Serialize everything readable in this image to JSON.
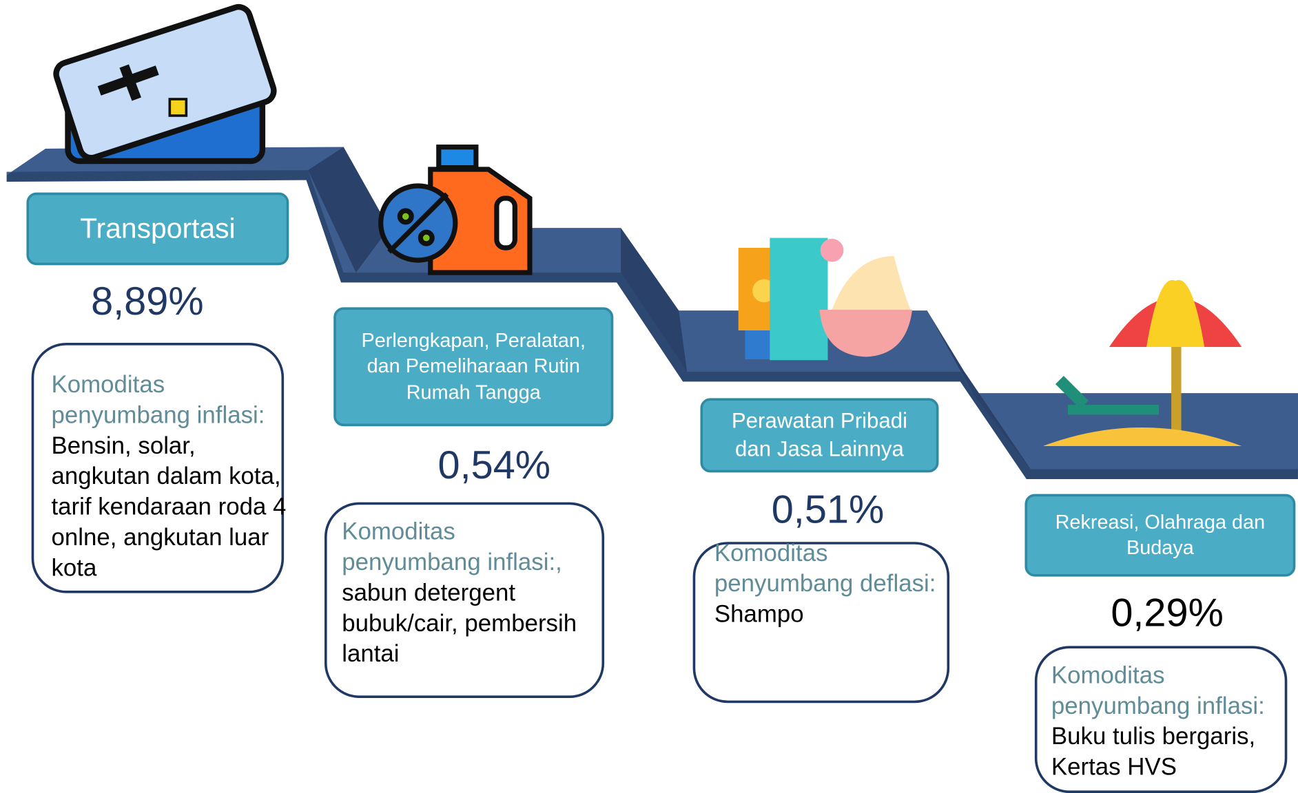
{
  "items": [
    {
      "category": "Transportasi",
      "value": "8,89%",
      "commodity_label": "Komoditas penyumbang inflasi:",
      "commodities": "Bensin, solar, angkutan dalam kota, tarif kendaraan roda 4 onlne, angkutan luar kota"
    },
    {
      "category": "Perlengkapan, Peralatan, dan Pemeliharaan Rutin Rumah Tangga",
      "value": "0,54%",
      "commodity_label": "Komoditas penyumbang inflasi:,",
      "commodities": "sabun detergent bubuk/cair, pembersih lantai"
    },
    {
      "category": "Perawatan Pribadi dan Jasa Lainnya",
      "value": "0,51%",
      "commodity_label": "Komoditas penyumbang deflasi:",
      "commodities": "Shampo"
    },
    {
      "category": "Rekreasi, Olahraga dan Budaya",
      "value": "0,29%",
      "commodity_label": "Komoditas penyumbang inflasi:",
      "commodities": "Buku tulis bergaris, Kertas HVS"
    }
  ]
}
